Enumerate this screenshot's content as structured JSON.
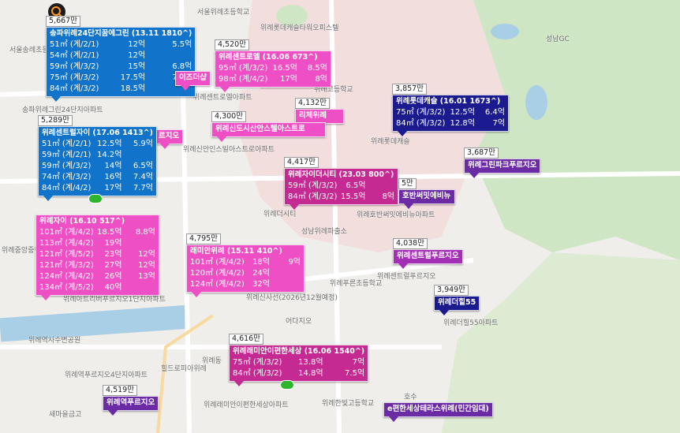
{
  "markers": [
    {
      "price": "5,667만",
      "title": "송파위례24단지꿈에그린 (13.11 1810^)",
      "rows": [
        [
          "51㎡ (계/2/1)",
          "12억",
          "5.5억"
        ],
        [
          "54㎡ (계/2/1)",
          "12억"
        ],
        [
          "59㎡ (계/3/2)",
          "15억",
          "6.8억"
        ],
        [
          "75㎡ (계/3/2)",
          "17.5억",
          "7.5억"
        ],
        [
          "84㎡ (계/3/2)",
          "18.5억"
        ]
      ]
    },
    {
      "price": "4,520만",
      "title": "위례센트로엘 (16.06 673^)",
      "rows": [
        [
          "95㎡ (계/3/2)",
          "16.5억",
          "8.5억"
        ],
        [
          "98㎡ (계/4/2)",
          "17억",
          "8억"
        ]
      ]
    },
    {
      "title": "이즈더샵"
    },
    {
      "price": "4,132만",
      "title": "리체위례"
    },
    {
      "price": "4,300만",
      "title": "위례신도시산안스텔아스트로"
    },
    {
      "price": "3,857만",
      "title": "위례롯데캐슬 (16.01 1673^)",
      "rows": [
        [
          "75㎡ (계/3/2)",
          "12.5억",
          "6.4억"
        ],
        [
          "84㎡ (계/3/2)",
          "12.8억",
          "7억"
        ]
      ]
    },
    {
      "title": "르지오"
    },
    {
      "price": "5,289만",
      "title": "위례센트럴자이 (17.06 1413^)",
      "rows": [
        [
          "51㎡ (계/2/1)",
          "12.5억",
          "5.9억"
        ],
        [
          "59㎡ (계/2/1)",
          "14.2억"
        ],
        [
          "59㎡ (계/3/2)",
          "14억",
          "6.5억"
        ],
        [
          "74㎡ (계/3/2)",
          "16억",
          "7.4억"
        ],
        [
          "84㎡ (계/4/2)",
          "17억",
          "7.7억"
        ]
      ]
    },
    {
      "price": "3,687만",
      "title": "위례그린파크푸르지오"
    },
    {
      "price": "4,417만",
      "title": "위례자이더시티 (23.03 800^)",
      "rows": [
        [
          "59㎡ (계/3/2)",
          "6.5억"
        ],
        [
          "84㎡ (계/3/2)",
          "15.5억",
          "8억"
        ]
      ]
    },
    {
      "price": "5만",
      "title": "호반써밋에비뉴"
    },
    {
      "title": "위례자이 (16.10 517^)",
      "rows": [
        [
          "101㎡ (계/4/2)",
          "18.5억",
          "8.8억"
        ],
        [
          "113㎡ (계/4/2)",
          "19억"
        ],
        [
          "121㎡ (계/5/2)",
          "23억",
          "12억"
        ],
        [
          "121㎡ (계/3/2)",
          "27억",
          "12억"
        ],
        [
          "124㎡ (계/4/2)",
          "26억",
          "13억"
        ],
        [
          "134㎡ (계/5/2)",
          "40억"
        ]
      ]
    },
    {
      "price": "4,795만",
      "title": "래미안위례 (15.11 410^)",
      "rows": [
        [
          "101㎡ (계/4/2)",
          "18억",
          "9억"
        ],
        [
          "120㎡ (계/4/2)",
          "24억"
        ],
        [
          "124㎡ (계/4/2)",
          "32억"
        ]
      ]
    },
    {
      "price": "4,038만",
      "title": "위례센트럴푸르지오"
    },
    {
      "price": "3,949만",
      "title": "위례더힐55"
    },
    {
      "price": "4,616만",
      "title": "위례래미안이편한세상 (16.06 1540^)",
      "rows": [
        [
          "75㎡ (계/3/2)",
          "13.8억",
          "7억"
        ],
        [
          "84㎡ (계/3/2)",
          "14.8억",
          "7.5억"
        ]
      ]
    },
    {
      "price": "4,519만",
      "title": "위례역푸르지오"
    },
    {
      "title": "e편한세상테라스위례(민간임대)"
    }
  ],
  "places": [
    "서울위례초등학교",
    "위례롯데캐슬타워오피스텔",
    "서울송례초등학교",
    "송파위례그린24단지아파트",
    "위례센트로엘아파트",
    "위례신안인스빌아스트로아파트",
    "위례더시티",
    "성남위례파출소",
    "위례푸른초등학교",
    "위례고등학교",
    "위례롯데캐슬",
    "위례호반써밋에비뉴아파트",
    "위례센트럴푸르지오",
    "위례더힐55아파트",
    "성남GC",
    "위례동",
    "위례중앙중학교",
    "위례아트리버푸르지오1단지아파트",
    "위례역사수변공원",
    "힐드로피아위례",
    "위례역푸르지오4단지아파트",
    "새마을금고",
    "어다지오",
    "위례한빛고등학교",
    "위례신사선(2026년12월예정)",
    "위례래미안이편한세상아파트",
    "호수"
  ]
}
